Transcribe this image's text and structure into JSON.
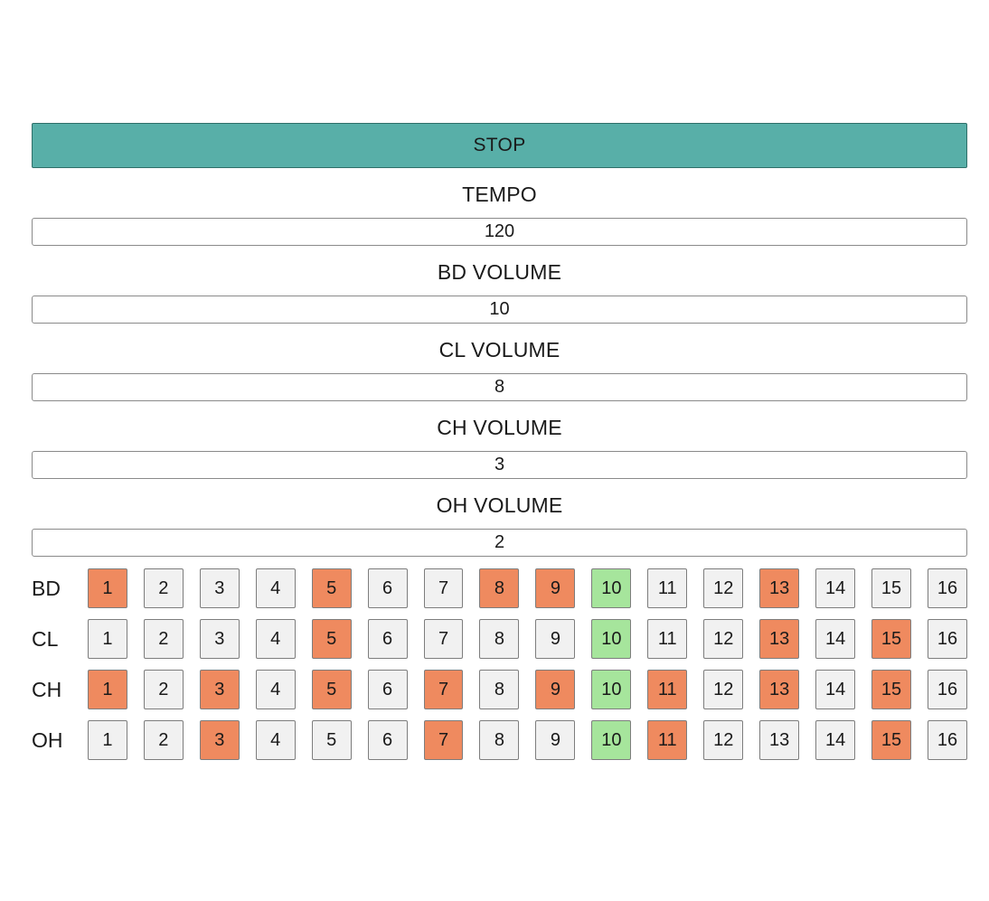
{
  "colors": {
    "stop_button": "#58afa8",
    "step_off": "#f1f1f1",
    "step_on": "#ef8a5f",
    "step_current": "#a6e59c"
  },
  "stop_button": {
    "label": "STOP"
  },
  "controls": [
    {
      "id": "tempo",
      "label": "TEMPO",
      "value": "120"
    },
    {
      "id": "bd-volume",
      "label": "BD VOLUME",
      "value": "10"
    },
    {
      "id": "cl-volume",
      "label": "CL VOLUME",
      "value": "8"
    },
    {
      "id": "ch-volume",
      "label": "CH VOLUME",
      "value": "3"
    },
    {
      "id": "oh-volume",
      "label": "OH VOLUME",
      "value": "2"
    }
  ],
  "sequencer": {
    "current_step": 10,
    "tracks": [
      {
        "name": "BD",
        "active": [
          1,
          5,
          8,
          9,
          13
        ]
      },
      {
        "name": "CL",
        "active": [
          5,
          13,
          15
        ]
      },
      {
        "name": "CH",
        "active": [
          1,
          3,
          5,
          7,
          9,
          11,
          13,
          15
        ]
      },
      {
        "name": "OH",
        "active": [
          3,
          7,
          11,
          15
        ]
      }
    ],
    "steps": [
      "1",
      "2",
      "3",
      "4",
      "5",
      "6",
      "7",
      "8",
      "9",
      "10",
      "11",
      "12",
      "13",
      "14",
      "15",
      "16"
    ]
  }
}
